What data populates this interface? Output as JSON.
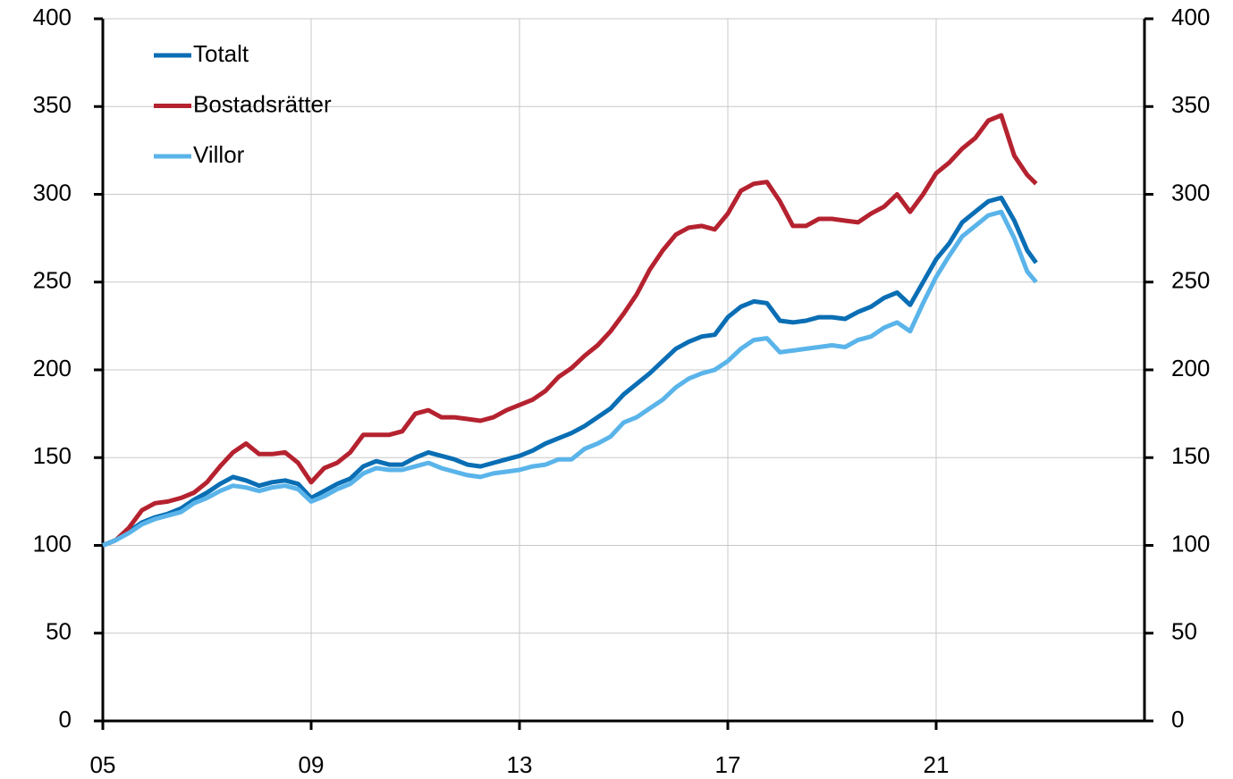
{
  "chart_data": {
    "type": "line",
    "x": [
      2005,
      2005.25,
      2005.5,
      2005.75,
      2006,
      2006.25,
      2006.5,
      2006.75,
      2007,
      2007.25,
      2007.5,
      2007.75,
      2008,
      2008.25,
      2008.5,
      2008.75,
      2009,
      2009.25,
      2009.5,
      2009.75,
      2010,
      2010.25,
      2010.5,
      2010.75,
      2011,
      2011.25,
      2011.5,
      2011.75,
      2012,
      2012.25,
      2012.5,
      2012.75,
      2013,
      2013.25,
      2013.5,
      2013.75,
      2014,
      2014.25,
      2014.5,
      2014.75,
      2015,
      2015.25,
      2015.5,
      2015.75,
      2016,
      2016.25,
      2016.5,
      2016.75,
      2017,
      2017.25,
      2017.5,
      2017.75,
      2018,
      2018.25,
      2018.5,
      2018.75,
      2019,
      2019.25,
      2019.5,
      2019.75,
      2020,
      2020.25,
      2020.5,
      2020.75,
      2021,
      2021.25,
      2021.5,
      2021.75,
      2022,
      2022.25,
      2022.5,
      2022.75,
      2022.92
    ],
    "series": [
      {
        "name": "Totalt",
        "color": "#0a6eb4",
        "values": [
          100,
          103,
          108,
          113,
          116,
          118,
          121,
          126,
          130,
          135,
          139,
          137,
          134,
          136,
          137,
          135,
          127,
          131,
          135,
          138,
          145,
          148,
          146,
          146,
          150,
          153,
          151,
          149,
          146,
          145,
          147,
          149,
          151,
          154,
          158,
          161,
          164,
          168,
          173,
          178,
          186,
          192,
          198,
          205,
          212,
          216,
          219,
          220,
          230,
          236,
          239,
          238,
          228,
          227,
          228,
          230,
          230,
          229,
          233,
          236,
          241,
          244,
          237,
          250,
          263,
          272,
          284,
          290,
          296,
          298,
          285,
          268,
          261
        ]
      },
      {
        "name": "Bostadsrätter",
        "color": "#b5222f",
        "values": [
          100,
          103,
          110,
          120,
          124,
          125,
          127,
          130,
          136,
          145,
          153,
          158,
          152,
          152,
          153,
          147,
          136,
          144,
          147,
          153,
          163,
          163,
          163,
          165,
          175,
          177,
          173,
          173,
          172,
          171,
          173,
          177,
          180,
          183,
          188,
          196,
          201,
          208,
          214,
          222,
          232,
          243,
          257,
          268,
          277,
          281,
          282,
          280,
          289,
          302,
          306,
          307,
          296,
          282,
          282,
          286,
          286,
          285,
          284,
          289,
          293,
          300,
          290,
          300,
          312,
          318,
          326,
          332,
          342,
          345,
          322,
          311,
          306
        ]
      },
      {
        "name": "Villor",
        "color": "#5ab4ea",
        "values": [
          100,
          103,
          107,
          112,
          115,
          117,
          119,
          124,
          127,
          131,
          134,
          133,
          131,
          133,
          134,
          132,
          125,
          128,
          132,
          135,
          141,
          144,
          143,
          143,
          145,
          147,
          144,
          142,
          140,
          139,
          141,
          142,
          143,
          145,
          146,
          149,
          149,
          155,
          158,
          162,
          170,
          173,
          178,
          183,
          190,
          195,
          198,
          200,
          205,
          212,
          217,
          218,
          210,
          211,
          212,
          213,
          214,
          213,
          217,
          219,
          224,
          227,
          222,
          238,
          253,
          265,
          276,
          282,
          288,
          290,
          275,
          256,
          250
        ]
      }
    ],
    "xlim": [
      2005,
      2025
    ],
    "xticks": [
      {
        "value": 2005,
        "label": "05"
      },
      {
        "value": 2009,
        "label": "09"
      },
      {
        "value": 2013,
        "label": "13"
      },
      {
        "value": 2017,
        "label": "17"
      },
      {
        "value": 2021,
        "label": "21"
      }
    ],
    "ylim": [
      0,
      400
    ],
    "yticks": [
      0,
      50,
      100,
      150,
      200,
      250,
      300,
      350,
      400
    ],
    "y2lim": [
      0,
      400
    ],
    "y2ticks": [
      0,
      50,
      100,
      150,
      200,
      250,
      300,
      350,
      400
    ],
    "grid": true,
    "legend": "upper left"
  }
}
